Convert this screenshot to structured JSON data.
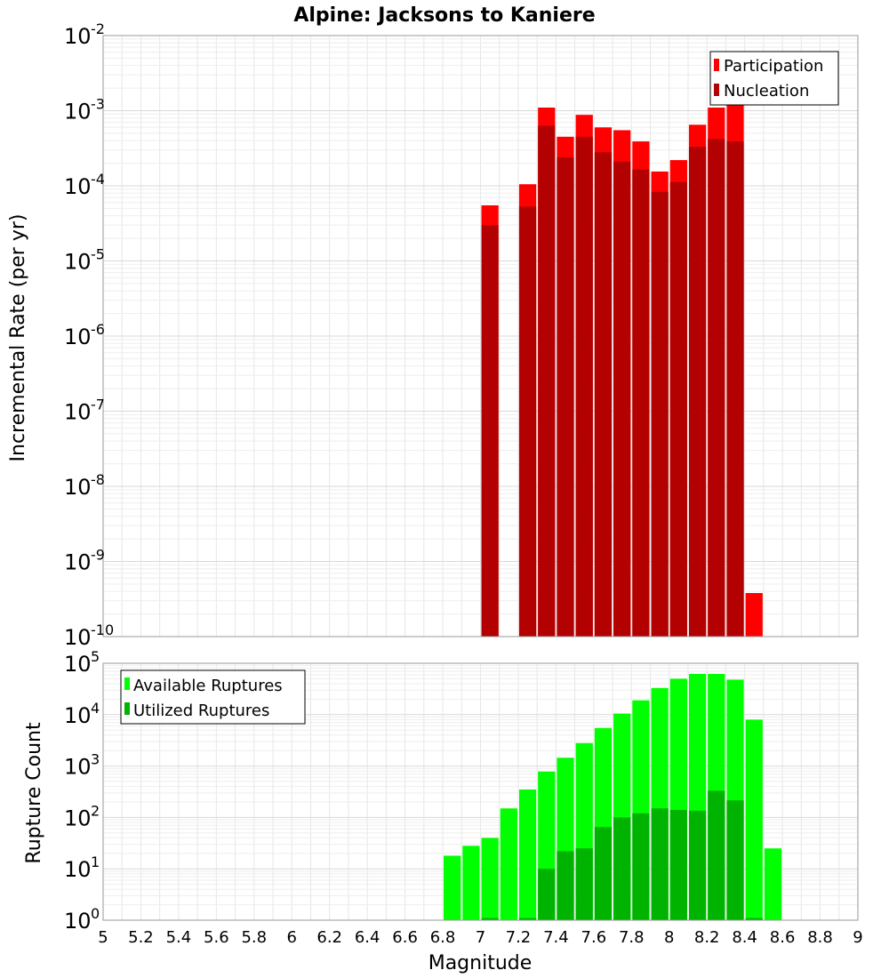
{
  "chart_data": [
    {
      "type": "bar",
      "title": "Alpine: Jacksons to Kaniere",
      "ylabel": "Incremental Rate (per yr)",
      "xlabel": "",
      "yscale": "log",
      "ylim": [
        1e-10,
        0.01
      ],
      "xlim": [
        5,
        9
      ],
      "grid": true,
      "legend_position": "top-right",
      "bar_width": 0.1,
      "x": [
        7.05,
        7.25,
        7.35,
        7.45,
        7.55,
        7.65,
        7.75,
        7.85,
        7.95,
        8.05,
        8.15,
        8.25,
        8.35,
        8.45
      ],
      "series": [
        {
          "name": "Participation",
          "color": "#ff0000",
          "values": [
            5.5e-05,
            0.000105,
            0.0011,
            0.00045,
            0.00088,
            0.0006,
            0.00055,
            0.00039,
            0.000155,
            0.00022,
            0.00065,
            0.0011,
            0.00125,
            3.8e-10
          ]
        },
        {
          "name": "Nucleation",
          "color": "#b30000",
          "values": [
            3e-05,
            5.3e-05,
            0.00063,
            0.00024,
            0.00045,
            0.00028,
            0.00021,
            0.000165,
            8.3e-05,
            0.000112,
            0.00033,
            0.00042,
            0.00039,
            1e-10
          ]
        }
      ]
    },
    {
      "type": "bar",
      "title": "",
      "ylabel": "Rupture Count",
      "xlabel": "Magnitude",
      "yscale": "log",
      "ylim": [
        1,
        100000.0
      ],
      "xlim": [
        5,
        9
      ],
      "grid": true,
      "legend_position": "top-left",
      "bar_width": 0.1,
      "x": [
        6.85,
        6.95,
        7.05,
        7.15,
        7.25,
        7.35,
        7.45,
        7.55,
        7.65,
        7.75,
        7.85,
        7.95,
        8.05,
        8.15,
        8.25,
        8.35,
        8.45,
        8.55
      ],
      "x_ticks": [
        "5",
        "5.2",
        "5.4",
        "5.6",
        "5.8",
        "6",
        "6.2",
        "6.4",
        "6.6",
        "6.8",
        "7",
        "7.2",
        "7.4",
        "7.6",
        "7.8",
        "8",
        "8.2",
        "8.4",
        "8.6",
        "8.8",
        "9"
      ],
      "series": [
        {
          "name": "Available Ruptures",
          "color": "#00ff00",
          "values": [
            18,
            28,
            40,
            150,
            350,
            780,
            1450,
            2800,
            5500,
            10500,
            19000,
            33000,
            50000,
            62000,
            62000,
            48000,
            8000,
            25
          ]
        },
        {
          "name": "Utilized Ruptures",
          "color": "#00b300",
          "values": [
            0,
            0,
            1.1,
            0,
            1.1,
            10,
            22,
            25,
            65,
            100,
            120,
            150,
            140,
            135,
            330,
            215,
            1.1,
            0
          ]
        }
      ]
    }
  ]
}
